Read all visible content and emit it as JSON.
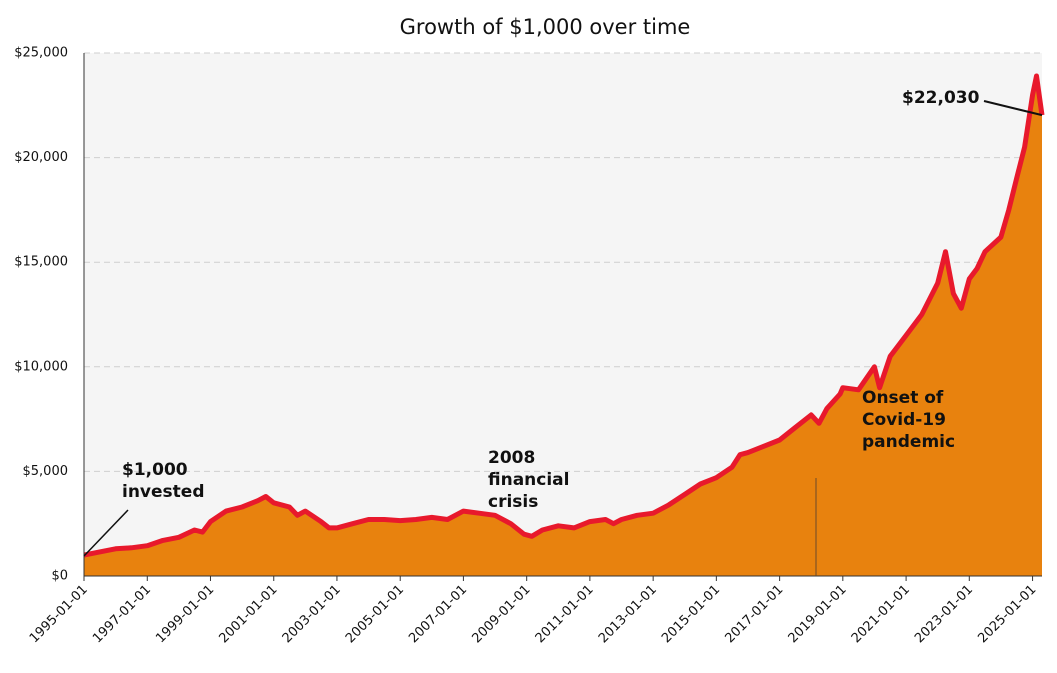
{
  "chart_data": {
    "type": "area",
    "title": "Growth of $1,000 over time",
    "x": [
      "1995-01-01",
      "1995-07-01",
      "1996-01-01",
      "1996-07-01",
      "1997-01-01",
      "1997-07-01",
      "1998-01-01",
      "1998-07-01",
      "1998-10-01",
      "1999-01-01",
      "1999-07-01",
      "2000-01-01",
      "2000-07-01",
      "2000-10-01",
      "2001-01-01",
      "2001-07-01",
      "2001-10-01",
      "2002-01-01",
      "2002-07-01",
      "2002-10-01",
      "2003-01-01",
      "2003-07-01",
      "2004-01-01",
      "2004-07-01",
      "2005-01-01",
      "2005-07-01",
      "2006-01-01",
      "2006-07-01",
      "2007-01-01",
      "2007-07-01",
      "2008-01-01",
      "2008-07-01",
      "2008-12-01",
      "2009-03-01",
      "2009-07-01",
      "2010-01-01",
      "2010-07-01",
      "2011-01-01",
      "2011-07-01",
      "2011-10-01",
      "2012-01-01",
      "2012-07-01",
      "2013-01-01",
      "2013-07-01",
      "2014-01-01",
      "2014-07-01",
      "2015-01-01",
      "2015-07-01",
      "2015-10-01",
      "2016-01-01",
      "2016-07-01",
      "2017-01-01",
      "2017-07-01",
      "2018-01-01",
      "2018-04-01",
      "2018-07-01",
      "2018-12-01",
      "2019-01-01",
      "2019-07-01",
      "2020-01-01",
      "2020-03-01",
      "2020-07-01",
      "2021-01-01",
      "2021-07-01",
      "2022-01-01",
      "2022-04-01",
      "2022-07-01",
      "2022-10-01",
      "2023-01-01",
      "2023-04-01",
      "2023-07-01",
      "2024-01-01",
      "2024-04-01",
      "2024-07-01",
      "2024-10-01",
      "2025-01-01",
      "2025-02-15",
      "2025-04-20"
    ],
    "values": [
      1000,
      1150,
      1300,
      1350,
      1450,
      1700,
      1850,
      2200,
      2100,
      2600,
      3100,
      3300,
      3600,
      3800,
      3500,
      3300,
      2900,
      3100,
      2600,
      2300,
      2300,
      2500,
      2700,
      2700,
      2650,
      2700,
      2800,
      2700,
      3100,
      3000,
      2900,
      2500,
      2000,
      1900,
      2200,
      2400,
      2300,
      2600,
      2700,
      2500,
      2700,
      2900,
      3000,
      3400,
      3900,
      4400,
      4700,
      5200,
      5800,
      5900,
      6200,
      6500,
      7100,
      7700,
      7300,
      8000,
      8700,
      9000,
      8900,
      10000,
      9000,
      10500,
      11500,
      12500,
      14000,
      15500,
      13500,
      12800,
      14200,
      14700,
      15500,
      16200,
      17500,
      19000,
      20500,
      23000,
      23900,
      22030
    ],
    "color": "#e8820e",
    "line_color": "#e8192c",
    "background": "#f5f5f5",
    "grid": true,
    "xlim": [
      "1995-01-01",
      "2025-04-20"
    ],
    "xticks": [
      "1995-01-01",
      "1997-01-01",
      "1999-01-01",
      "2001-01-01",
      "2003-01-01",
      "2005-01-01",
      "2007-01-01",
      "2009-01-01",
      "2011-01-01",
      "2013-01-01",
      "2015-01-01",
      "2017-01-01",
      "2019-01-01",
      "2021-01-01",
      "2023-01-01",
      "2025-01-01"
    ],
    "ylim": [
      0,
      25000
    ],
    "yticks": [
      {
        "value": 0,
        "label": "$0"
      },
      {
        "value": 5000,
        "label": "$5,000"
      },
      {
        "value": 10000,
        "label": "$10,000"
      },
      {
        "value": 15000,
        "label": "$15,000"
      },
      {
        "value": 20000,
        "label": "$20,000"
      },
      {
        "value": 25000,
        "label": "$25,000"
      }
    ],
    "annotations": [
      {
        "lines": [
          "$1,000",
          "invested"
        ]
      },
      {
        "lines": [
          "2008",
          "financial",
          "crisis"
        ]
      },
      {
        "lines": [
          "Onset of",
          "Covid-19",
          "pandemic"
        ]
      },
      {
        "lines": [
          "$22,030"
        ]
      }
    ]
  }
}
